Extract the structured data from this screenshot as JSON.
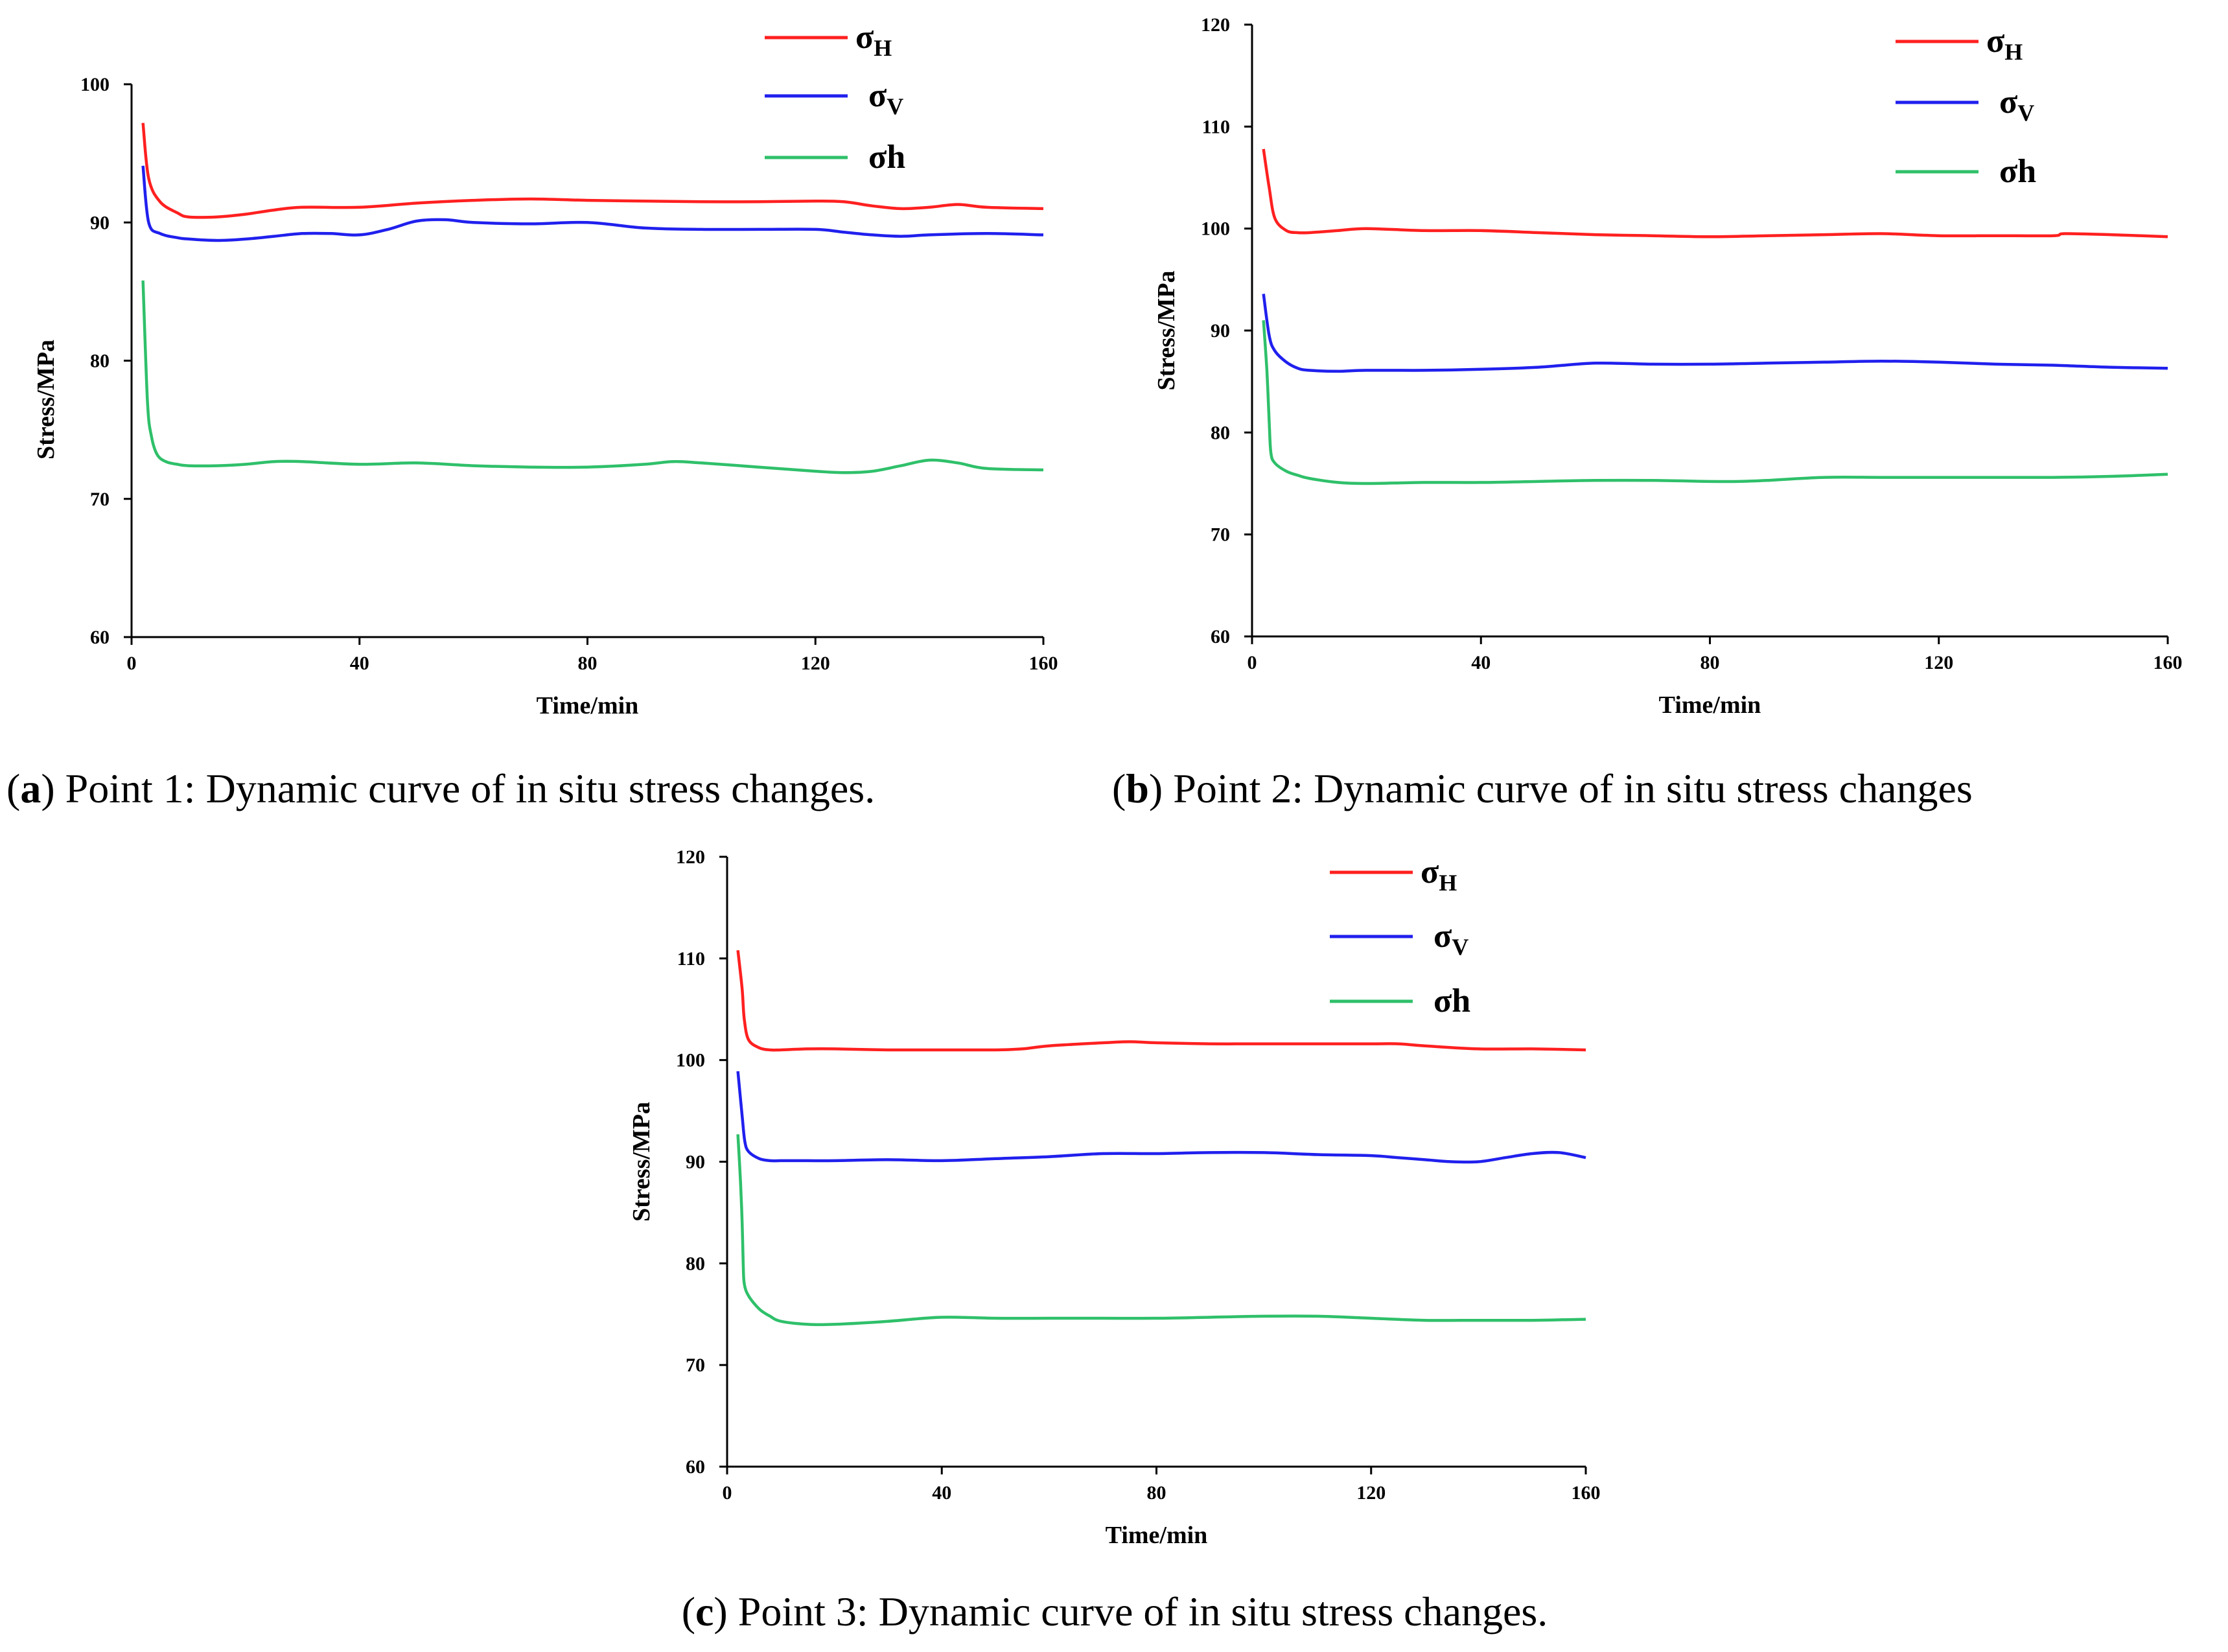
{
  "chart_data": [
    {
      "id": "a",
      "type": "line",
      "caption": {
        "prefix": "(",
        "letter": "a",
        "suffix": ") Point 1: Dynamic curve of in situ stress changes."
      },
      "xlabel": "Time/min",
      "ylabel": "Stress/MPa",
      "xlim": [
        0,
        160
      ],
      "ylim": [
        60,
        100
      ],
      "xticks": [
        0,
        40,
        80,
        120,
        160
      ],
      "yticks": [
        60,
        70,
        80,
        90,
        100
      ],
      "series": [
        {
          "name": "σH",
          "base": "σ",
          "sub": "H",
          "color": "#ff2020",
          "x": [
            2,
            3,
            5,
            8,
            10,
            15,
            20,
            25,
            30,
            40,
            50,
            60,
            70,
            80,
            90,
            100,
            110,
            120,
            125,
            130,
            135,
            140,
            145,
            150,
            160
          ],
          "y": [
            97.2,
            93.2,
            91.5,
            90.7,
            90.4,
            90.4,
            90.6,
            90.9,
            91.1,
            91.1,
            91.4,
            91.6,
            91.7,
            91.6,
            91.55,
            91.5,
            91.5,
            91.55,
            91.5,
            91.2,
            91.0,
            91.1,
            91.3,
            91.1,
            91.0
          ]
        },
        {
          "name": "σV",
          "base": "σ",
          "sub": "V",
          "color": "#2020ee",
          "x": [
            2,
            3,
            5,
            8,
            10,
            15,
            20,
            25,
            30,
            35,
            40,
            45,
            50,
            55,
            60,
            70,
            80,
            90,
            100,
            110,
            120,
            125,
            130,
            135,
            140,
            150,
            160
          ],
          "y": [
            94.1,
            90.0,
            89.2,
            88.9,
            88.8,
            88.7,
            88.8,
            89.0,
            89.2,
            89.2,
            89.1,
            89.5,
            90.1,
            90.2,
            90.0,
            89.9,
            90.0,
            89.6,
            89.5,
            89.5,
            89.5,
            89.3,
            89.1,
            89.0,
            89.1,
            89.2,
            89.1
          ]
        },
        {
          "name": "σh",
          "base": "σh",
          "sub": "",
          "color": "#2fc06a",
          "x": [
            2,
            2.8,
            3.5,
            4.5,
            6,
            8,
            10,
            15,
            20,
            25,
            30,
            40,
            50,
            60,
            70,
            80,
            90,
            95,
            100,
            110,
            120,
            125,
            130,
            135,
            140,
            145,
            150,
            160
          ],
          "y": [
            85.8,
            77.0,
            74.5,
            73.2,
            72.7,
            72.5,
            72.4,
            72.4,
            72.5,
            72.7,
            72.7,
            72.5,
            72.6,
            72.4,
            72.3,
            72.3,
            72.5,
            72.7,
            72.6,
            72.3,
            72.0,
            71.9,
            72.0,
            72.4,
            72.8,
            72.6,
            72.2,
            72.1
          ]
        }
      ]
    },
    {
      "id": "b",
      "type": "line",
      "caption": {
        "prefix": "(",
        "letter": "b",
        "suffix": ") Point 2: Dynamic curve of in situ stress changes"
      },
      "xlabel": "Time/min",
      "ylabel": "Stress/MPa",
      "xlim": [
        0,
        160
      ],
      "ylim": [
        60,
        120
      ],
      "xticks": [
        0,
        40,
        80,
        120,
        160
      ],
      "yticks": [
        60,
        70,
        80,
        90,
        100,
        110,
        120
      ],
      "series": [
        {
          "name": "σH",
          "base": "σ",
          "sub": "H",
          "color": "#ff2020",
          "x": [
            2,
            3,
            4,
            6,
            8,
            10,
            15,
            20,
            30,
            40,
            50,
            60,
            70,
            80,
            90,
            100,
            110,
            120,
            130,
            140,
            142,
            150,
            160
          ],
          "y": [
            107.8,
            104.0,
            101.0,
            99.8,
            99.6,
            99.6,
            99.8,
            100.0,
            99.8,
            99.8,
            99.6,
            99.4,
            99.3,
            99.2,
            99.3,
            99.4,
            99.5,
            99.3,
            99.3,
            99.3,
            99.5,
            99.4,
            99.2
          ]
        },
        {
          "name": "σV",
          "base": "σ",
          "sub": "V",
          "color": "#2020ee",
          "x": [
            2,
            3,
            4,
            6,
            8,
            10,
            15,
            20,
            30,
            40,
            50,
            60,
            70,
            80,
            90,
            100,
            110,
            120,
            130,
            140,
            150,
            160
          ],
          "y": [
            93.6,
            89.5,
            88.0,
            86.9,
            86.3,
            86.1,
            86.0,
            86.1,
            86.1,
            86.2,
            86.4,
            86.8,
            86.7,
            86.7,
            86.8,
            86.9,
            87.0,
            86.9,
            86.7,
            86.6,
            86.4,
            86.3
          ]
        },
        {
          "name": "σh",
          "base": "σh",
          "sub": "",
          "color": "#2fc06a",
          "x": [
            2,
            2.6,
            3.0,
            3.3,
            4,
            6,
            8,
            10,
            15,
            20,
            30,
            40,
            50,
            60,
            70,
            80,
            85,
            90,
            100,
            110,
            120,
            130,
            140,
            150,
            160
          ],
          "y": [
            91.0,
            86.0,
            81.0,
            78.0,
            77.0,
            76.2,
            75.8,
            75.5,
            75.1,
            75.0,
            75.1,
            75.1,
            75.2,
            75.3,
            75.3,
            75.2,
            75.2,
            75.3,
            75.6,
            75.6,
            75.6,
            75.6,
            75.6,
            75.7,
            75.9
          ]
        }
      ]
    },
    {
      "id": "c",
      "type": "line",
      "caption": {
        "prefix": "(",
        "letter": "c",
        "suffix": ") Point 3: Dynamic curve of in situ stress changes."
      },
      "xlabel": "Time/min",
      "ylabel": "Stress/MPa",
      "xlim": [
        0,
        160
      ],
      "ylim": [
        60,
        120
      ],
      "xticks": [
        0,
        40,
        80,
        120,
        160
      ],
      "yticks": [
        60,
        70,
        80,
        90,
        100,
        110,
        120
      ],
      "series": [
        {
          "name": "σH",
          "base": "σ",
          "sub": "H",
          "color": "#ff2020",
          "x": [
            2,
            2.8,
            3.2,
            4,
            6,
            8,
            10,
            15,
            20,
            30,
            40,
            50,
            55,
            60,
            70,
            75,
            80,
            90,
            100,
            110,
            120,
            125,
            130,
            140,
            150,
            160
          ],
          "y": [
            110.8,
            107.0,
            104.0,
            102.0,
            101.2,
            101.0,
            101.0,
            101.1,
            101.1,
            101.0,
            101.0,
            101.0,
            101.1,
            101.4,
            101.7,
            101.8,
            101.7,
            101.6,
            101.6,
            101.6,
            101.6,
            101.6,
            101.4,
            101.1,
            101.1,
            101.0
          ]
        },
        {
          "name": "σV",
          "base": "σ",
          "sub": "V",
          "color": "#2020ee",
          "x": [
            2,
            2.8,
            3.3,
            4,
            6,
            8,
            10,
            15,
            20,
            30,
            40,
            50,
            60,
            70,
            80,
            90,
            100,
            110,
            120,
            125,
            130,
            135,
            140,
            145,
            150,
            155,
            160
          ],
          "y": [
            98.9,
            94.5,
            92.0,
            91.0,
            90.3,
            90.1,
            90.1,
            90.1,
            90.1,
            90.2,
            90.1,
            90.3,
            90.5,
            90.8,
            90.8,
            90.9,
            90.9,
            90.7,
            90.6,
            90.4,
            90.2,
            90.0,
            90.0,
            90.4,
            90.8,
            90.9,
            90.4
          ]
        },
        {
          "name": "σh",
          "base": "σh",
          "sub": "",
          "color": "#2fc06a",
          "x": [
            2,
            2.5,
            2.8,
            3.0,
            3.2,
            4,
            6,
            8,
            10,
            15,
            20,
            30,
            40,
            50,
            60,
            70,
            80,
            90,
            100,
            110,
            120,
            130,
            140,
            150,
            160
          ],
          "y": [
            92.7,
            88.0,
            84.0,
            80.0,
            78.0,
            76.8,
            75.5,
            74.8,
            74.3,
            74.0,
            74.0,
            74.3,
            74.7,
            74.6,
            74.6,
            74.6,
            74.6,
            74.7,
            74.8,
            74.8,
            74.6,
            74.4,
            74.4,
            74.4,
            74.5
          ]
        }
      ]
    }
  ]
}
